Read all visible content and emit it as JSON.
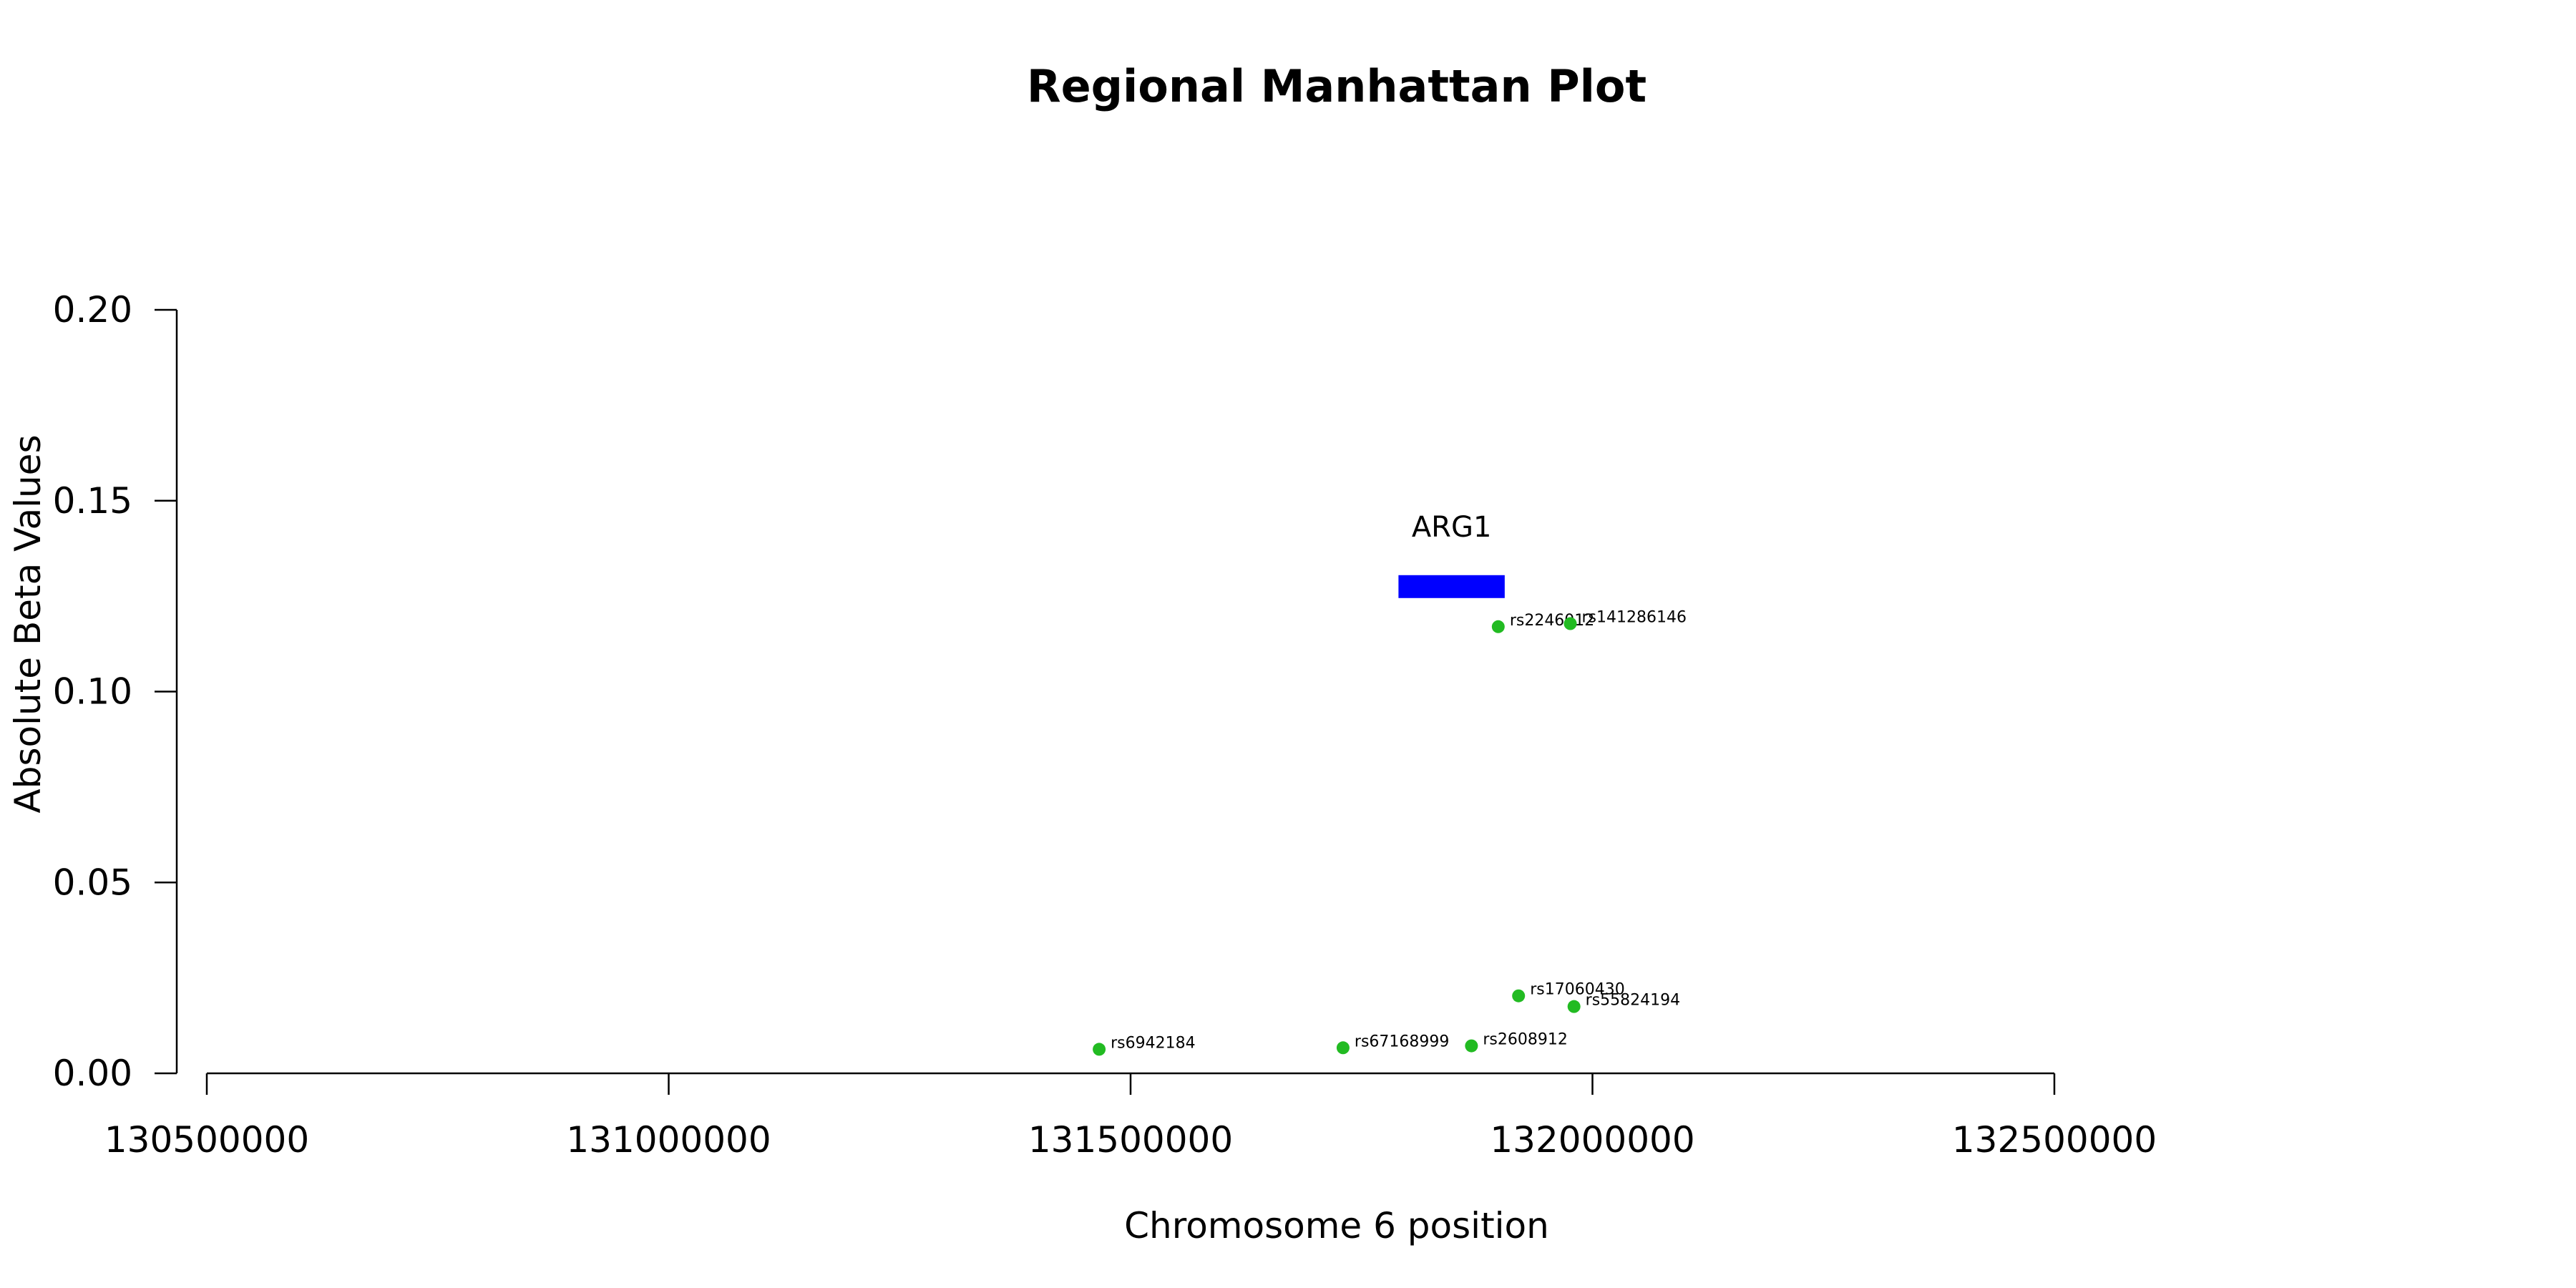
{
  "chart_data": {
    "type": "scatter",
    "title": "Regional Manhattan Plot",
    "xlabel": "Chromosome 6 position",
    "ylabel": "Absolute Beta Values",
    "xlim": [
      130500000,
      132500000
    ],
    "ylim": [
      0,
      0.2
    ],
    "x_ticks": [
      {
        "value": 130500000,
        "label": "130500000"
      },
      {
        "value": 131000000,
        "label": "131000000"
      },
      {
        "value": 131500000,
        "label": "131500000"
      },
      {
        "value": 132000000,
        "label": "132000000"
      },
      {
        "value": 132500000,
        "label": "132500000"
      }
    ],
    "y_ticks": [
      {
        "value": 0.0,
        "label": "0.00"
      },
      {
        "value": 0.05,
        "label": "0.05"
      },
      {
        "value": 0.1,
        "label": "0.10"
      },
      {
        "value": 0.15,
        "label": "0.15"
      },
      {
        "value": 0.2,
        "label": "0.20"
      }
    ],
    "point_color": "#22bb22",
    "points": [
      {
        "x": 131466000,
        "y": 0.0063,
        "label": "rs6942184"
      },
      {
        "x": 131730000,
        "y": 0.0067,
        "label": "rs67168999"
      },
      {
        "x": 131869000,
        "y": 0.0072,
        "label": "rs2608912"
      },
      {
        "x": 131920000,
        "y": 0.0203,
        "label": "rs17060430"
      },
      {
        "x": 131980000,
        "y": 0.0175,
        "label": "rs55824194"
      },
      {
        "x": 131898000,
        "y": 0.117,
        "label": "rs2246012"
      },
      {
        "x": 131976000,
        "y": 0.1178,
        "label": "rs141286146"
      }
    ],
    "genes": [
      {
        "name": "ARG1",
        "start": 131790000,
        "end": 131905000,
        "y": 0.1275,
        "color": "#0000ff"
      }
    ]
  }
}
